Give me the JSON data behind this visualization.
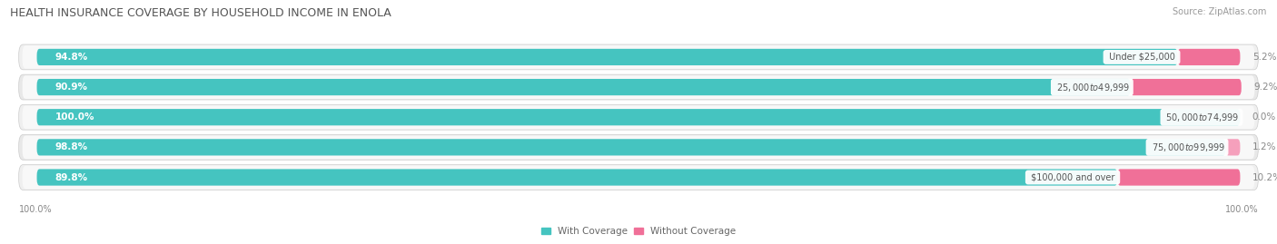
{
  "title": "HEALTH INSURANCE COVERAGE BY HOUSEHOLD INCOME IN ENOLA",
  "source": "Source: ZipAtlas.com",
  "categories": [
    "Under $25,000",
    "$25,000 to $49,999",
    "$50,000 to $74,999",
    "$75,000 to $99,999",
    "$100,000 and over"
  ],
  "with_coverage": [
    94.8,
    90.9,
    100.0,
    98.8,
    89.8
  ],
  "without_coverage": [
    5.2,
    9.2,
    0.0,
    1.2,
    10.2
  ],
  "coverage_color": "#45C4C0",
  "no_coverage_color": "#F07098",
  "no_coverage_color_light": "#F5A0BC",
  "row_bg_color": "#E8E8E8",
  "row_inner_bg": "#F5F5F5",
  "title_fontsize": 9,
  "source_fontsize": 7,
  "bar_label_fontsize": 7.5,
  "cat_label_fontsize": 7,
  "legend_fontsize": 7.5,
  "axis_label_fontsize": 7,
  "background_color": "#FFFFFF"
}
